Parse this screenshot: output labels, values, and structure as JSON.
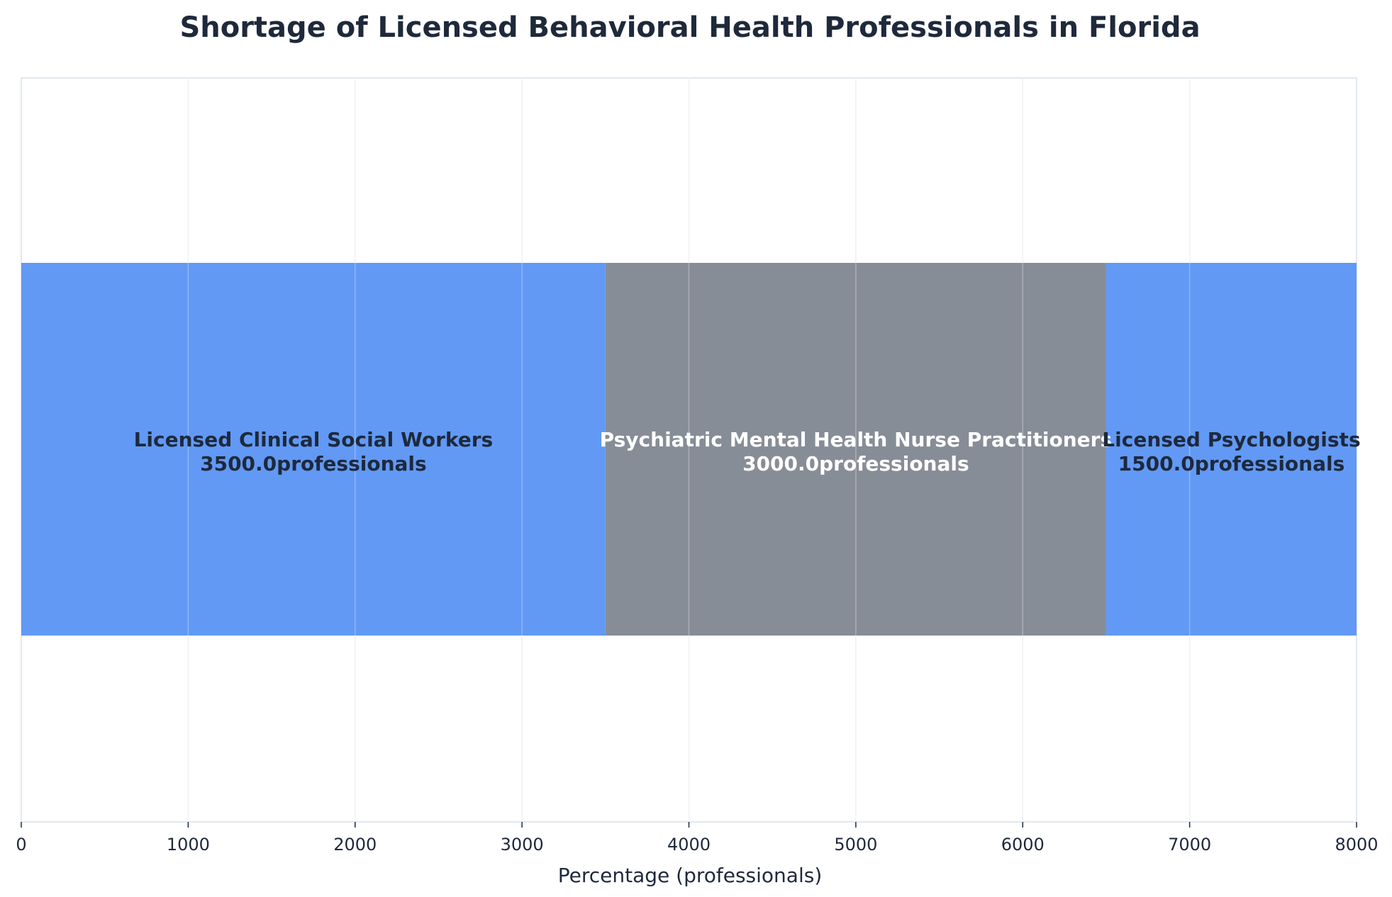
{
  "chart_data": {
    "type": "bar",
    "title": "Shortage of Licensed Behavioral Health Professionals in Florida",
    "xlabel": "Percentage (professionals)",
    "ylabel": "",
    "xlim": [
      0,
      8000
    ],
    "xticks": [
      0,
      1000,
      2000,
      3000,
      4000,
      5000,
      6000,
      7000,
      8000
    ],
    "grid": true,
    "stacked": true,
    "orientation": "horizontal",
    "segments": [
      {
        "name": "Licensed Clinical Social Workers",
        "value": 3500,
        "label_value": "3500.0professionals",
        "color": "#6199f5",
        "label_color": "#1e293b"
      },
      {
        "name": "Psychiatric Mental Health Nurse Practitioners",
        "value": 3000,
        "label_value": "3000.0professionals",
        "color": "#878d97",
        "label_color": "#ffffff"
      },
      {
        "name": "Licensed Psychologists",
        "value": 1500,
        "label_value": "1500.0professionals",
        "color": "#6199f5",
        "label_color": "#1e293b"
      }
    ]
  }
}
